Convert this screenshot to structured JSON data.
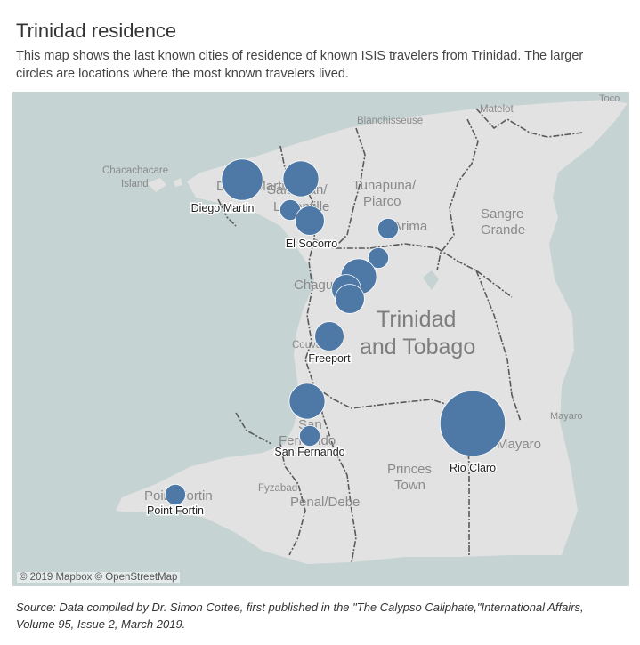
{
  "title": "Trinidad residence",
  "subtitle": "This map shows the last known cities of residence of known ISIS travelers from Trinidad. The larger circles are locations where the most known travelers lived.",
  "attribution": "© 2019 Mapbox © OpenStreetMap",
  "source": "Source: Data compiled by Dr. Simon Cottee, first published in the \"The Calypso Caliphate,\"International Affairs, Volume 95, Issue 2, March 2019.",
  "colors": {
    "water": "#c5d3d2",
    "land": "#e2e2e2",
    "marker": "#4e79a7",
    "border": "#5a5a5a"
  },
  "basemap_labels": {
    "toco": "Toco",
    "matelot": "Matelot",
    "blanchisseuse": "Blanchisseuse",
    "chacachacare_1": "Chacachacare",
    "chacachacare_2": "Island",
    "tunapuna_1": "Tunapuna/",
    "tunapuna_2": "Piarco",
    "sangre_1": "Sangre",
    "sangre_2": "Grande",
    "arima": "Arima",
    "sanjuan_1": "San Juan/",
    "sanjuan_2": "Laventille",
    "chaguanas": "Chaguanas",
    "country_1": "Trinidad",
    "country_2": "and Tobago",
    "couva": "Couva",
    "mayaro_small": "Mayaro",
    "mayaro_region": "Mayaro",
    "princes_1": "Princes",
    "princes_2": "Town",
    "fyzabad": "Fyzabad",
    "penal": "Penal/Debe",
    "pointfortin_region": "Point Fortin",
    "sanfernando_region_1": "San",
    "sanfernando_region_2": "Fernando",
    "diego_region": "Diego Martin"
  },
  "markers": [
    {
      "id": "diego-martin",
      "label": "Diego Martin",
      "size": 4
    },
    {
      "id": "san-juan",
      "label": "",
      "size": 3
    },
    {
      "id": "st-james",
      "label": "",
      "size": 1
    },
    {
      "id": "el-socorro",
      "label": "El Socorro",
      "size": 2
    },
    {
      "id": "arima",
      "label": "",
      "size": 1
    },
    {
      "id": "central-1",
      "label": "",
      "size": 1
    },
    {
      "id": "chaguanas-1",
      "label": "",
      "size": 3
    },
    {
      "id": "chaguanas-2",
      "label": "",
      "size": 2
    },
    {
      "id": "chaguanas-3",
      "label": "",
      "size": 2
    },
    {
      "id": "freeport",
      "label": "Freeport",
      "size": 2
    },
    {
      "id": "san-fernando-north",
      "label": "",
      "size": 3
    },
    {
      "id": "san-fernando",
      "label": "San Fernando",
      "size": 1
    },
    {
      "id": "point-fortin",
      "label": "Point Fortin",
      "size": 1
    },
    {
      "id": "rio-claro",
      "label": "Rio Claro",
      "size": 10
    }
  ]
}
